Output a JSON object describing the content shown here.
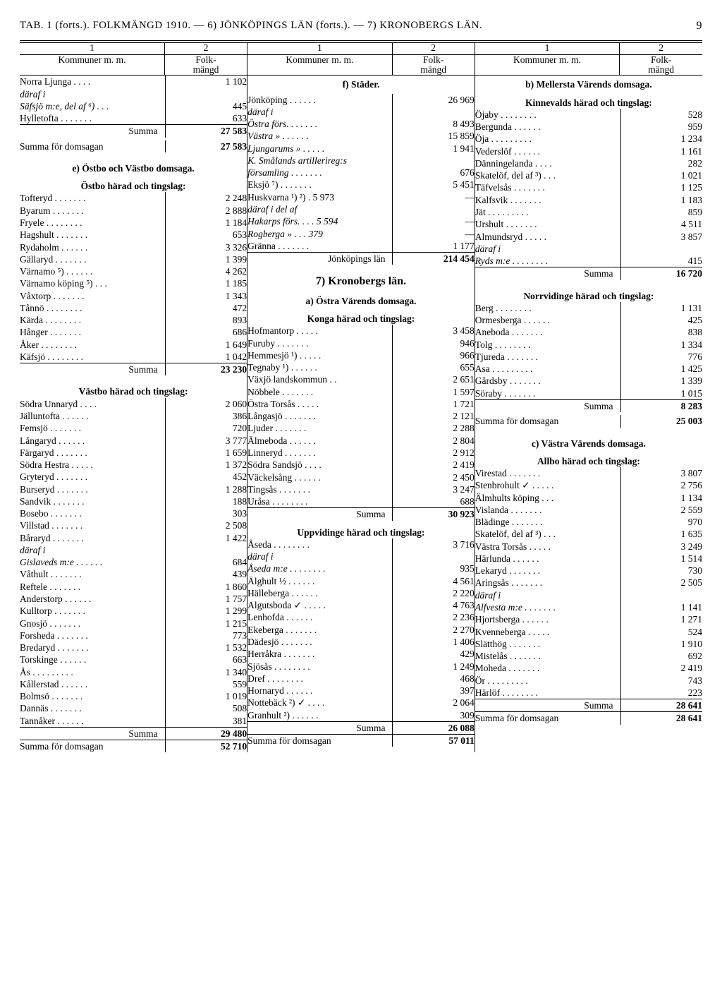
{
  "header": {
    "title": "TAB. 1 (forts.). FOLKMÄNGD 1910. — 6) JÖNKÖPINGS LÄN (forts.). — 7) KRONOBERGS LÄN.",
    "page_number": "9"
  },
  "column_numbers": [
    "1",
    "2",
    "1",
    "2",
    "1",
    "2"
  ],
  "column_headers": {
    "label": "Kommuner m. m.",
    "value": "Folk-\nmängd"
  },
  "col1": [
    {
      "t": "row",
      "lbl": "Norra Ljunga . . . .",
      "val": "1 102"
    },
    {
      "t": "row",
      "lbl": "däraf i",
      "cls": "italic",
      "val": ""
    },
    {
      "t": "row",
      "lbl": "Säfsjö m:e, del af ⁶) . . .",
      "cls": "italic",
      "val": "445"
    },
    {
      "t": "row",
      "lbl": "Hylletofta . . . . . . .",
      "val": "633"
    },
    {
      "t": "sum",
      "lbl": "Summa",
      "cls": "right",
      "val": "27 583",
      "bold": true
    },
    {
      "t": "thinspacer"
    },
    {
      "t": "row",
      "lbl": "Summa för domsagan",
      "val": "27 583",
      "bold": true
    },
    {
      "t": "spacer"
    },
    {
      "t": "head",
      "lbl": "e) Östbo och Västbo\ndomsaga."
    },
    {
      "t": "thinspacer"
    },
    {
      "t": "head",
      "lbl": "Östbo härad och\ntingslag:"
    },
    {
      "t": "row",
      "lbl": "Tofteryd . . . . . . .",
      "val": "2 248"
    },
    {
      "t": "row",
      "lbl": "Byarum . . . . . . .",
      "val": "2 888"
    },
    {
      "t": "row",
      "lbl": "Fryele . . . . . . . .",
      "val": "1 184"
    },
    {
      "t": "row",
      "lbl": "Hagshult . . . . . . .",
      "val": "653"
    },
    {
      "t": "row",
      "lbl": "Rydaholm . . . . . .",
      "val": "3 326"
    },
    {
      "t": "row",
      "lbl": "Gällaryd . . . . . . .",
      "val": "1 399"
    },
    {
      "t": "row",
      "lbl": "Värnamo ⁵) . . . . . .",
      "val": "4 262"
    },
    {
      "t": "row",
      "lbl": "Värnamo köping ⁵) . . .",
      "val": "1 185"
    },
    {
      "t": "row",
      "lbl": "Våxtorp . . . . . . .",
      "val": "1 343"
    },
    {
      "t": "row",
      "lbl": "Tånnö . . . . . . . .",
      "val": "472"
    },
    {
      "t": "row",
      "lbl": "Kärda . . . . . . . .",
      "val": "893"
    },
    {
      "t": "row",
      "lbl": "Hånger . . . . . . .",
      "val": "686"
    },
    {
      "t": "row",
      "lbl": "Åker . . . . . . . .",
      "val": "1 649"
    },
    {
      "t": "row",
      "lbl": "Käfsjö . . . . . . . .",
      "val": "1 042"
    },
    {
      "t": "sum",
      "lbl": "Summa",
      "cls": "right",
      "val": "23 230",
      "bold": true
    },
    {
      "t": "spacer"
    },
    {
      "t": "head",
      "lbl": "Västbo härad och\ntingslag:"
    },
    {
      "t": "row",
      "lbl": "Södra Unnaryd . . . .",
      "val": "2 060"
    },
    {
      "t": "row",
      "lbl": "Jälluntofta . . . . . .",
      "val": "386"
    },
    {
      "t": "row",
      "lbl": "Femsjö . . . . . . .",
      "val": "720"
    },
    {
      "t": "row",
      "lbl": "Långaryd . . . . . .",
      "val": "3 777"
    },
    {
      "t": "row",
      "lbl": "Färgaryd . . . . . . .",
      "val": "1 659"
    },
    {
      "t": "row",
      "lbl": "Södra Hestra . . . . .",
      "val": "1 372"
    },
    {
      "t": "row",
      "lbl": "Gryteryd . . . . . . .",
      "val": "452"
    },
    {
      "t": "row",
      "lbl": "Burseryd . . . . . . .",
      "val": "1 288"
    },
    {
      "t": "row",
      "lbl": "Sandvik . . . . . . .",
      "val": "188"
    },
    {
      "t": "row",
      "lbl": "Bosebo . . . . . . .",
      "val": "303"
    },
    {
      "t": "row",
      "lbl": "Villstad . . . . . . .",
      "val": "2 508"
    },
    {
      "t": "row",
      "lbl": "Båraryd . . . . . . .",
      "val": "1 422"
    },
    {
      "t": "row",
      "lbl": "däraf i",
      "cls": "italic",
      "val": ""
    },
    {
      "t": "row",
      "lbl": "Gislaveds m:e . . . . . .",
      "cls": "italic",
      "val": "684"
    },
    {
      "t": "row",
      "lbl": "Våthult . . . . . . .",
      "val": "439"
    },
    {
      "t": "row",
      "lbl": "Reftele . . . . . . .",
      "val": "1 860"
    },
    {
      "t": "row",
      "lbl": "Anderstorp . . . . . .",
      "val": "1 757"
    },
    {
      "t": "row",
      "lbl": "Kulltorp . . . . . . .",
      "val": "1 299"
    },
    {
      "t": "row",
      "lbl": "Gnosjö . . . . . . .",
      "val": "1 215"
    },
    {
      "t": "row",
      "lbl": "Forsheda . . . . . . .",
      "val": "773"
    },
    {
      "t": "row",
      "lbl": "Bredaryd . . . . . . .",
      "val": "1 532"
    },
    {
      "t": "row",
      "lbl": "Torskinge . . . . . .",
      "val": "663"
    },
    {
      "t": "row",
      "lbl": "Ås . . . . . . . . .",
      "val": "1 340"
    },
    {
      "t": "row",
      "lbl": "Kållerstad . . . . . .",
      "val": "559"
    },
    {
      "t": "row",
      "lbl": "Bolmsö . . . . . . .",
      "val": "1 019"
    },
    {
      "t": "row",
      "lbl": "Dannäs . . . . . . .",
      "val": "508"
    },
    {
      "t": "row",
      "lbl": "Tannåker . . . . . .",
      "val": "381"
    },
    {
      "t": "sum",
      "lbl": "Summa",
      "cls": "right",
      "val": "29 480",
      "bold": true
    },
    {
      "t": "sum",
      "lbl": "Summa för domsagan",
      "val": "52 710",
      "bold": true
    }
  ],
  "col2": [
    {
      "t": "head",
      "lbl": "f) Städer."
    },
    {
      "t": "thinspacer"
    },
    {
      "t": "row",
      "lbl": "Jönköping . . . . . .",
      "val": "26 969"
    },
    {
      "t": "row",
      "lbl": "däraf i",
      "cls": "italic",
      "val": ""
    },
    {
      "t": "row",
      "lbl": "Östra       förs. . . . . . .",
      "cls": "italic",
      "val": "8 493"
    },
    {
      "t": "row",
      "lbl": "Västra       »    . . . . . .",
      "cls": "italic",
      "val": "15 859"
    },
    {
      "t": "row",
      "lbl": "Ljungarums »   . . . . .",
      "cls": "italic",
      "val": "1 941"
    },
    {
      "t": "row",
      "lbl": "K. Smålands artillerireg:s",
      "cls": "italic",
      "val": ""
    },
    {
      "t": "row",
      "lbl": "församling . . . . . . .",
      "cls": "italic",
      "val": "676"
    },
    {
      "t": "row",
      "lbl": "Eksjö ⁷) . . . . . . .",
      "val": "5 451"
    },
    {
      "t": "row",
      "lbl": "Huskvarna ¹) ²) .  5 973",
      "val": "—"
    },
    {
      "t": "row",
      "lbl": "däraf i del af",
      "cls": "italic",
      "val": ""
    },
    {
      "t": "row",
      "lbl": "Hakarps förs. . . .  5 594",
      "cls": "italic",
      "val": "—"
    },
    {
      "t": "row",
      "lbl": "Rogberga   »  . . .    379",
      "cls": "italic",
      "val": "—"
    },
    {
      "t": "row",
      "lbl": "Gränna . . . . . . .",
      "val": "1 177"
    },
    {
      "t": "sum",
      "lbl": "Jönköpings län",
      "cls": "right",
      "val": "214 454",
      "bold": true
    },
    {
      "t": "spacer"
    },
    {
      "t": "head",
      "lbl": "7) Kronobergs län.",
      "big": true
    },
    {
      "t": "thinspacer"
    },
    {
      "t": "head",
      "lbl": "a) Östra Värends\ndomsaga."
    },
    {
      "t": "thinspacer"
    },
    {
      "t": "head",
      "lbl": "Konga härad och\ntingslag:"
    },
    {
      "t": "row",
      "lbl": "Hofmantorp . . . . .",
      "val": "3 458"
    },
    {
      "t": "row",
      "lbl": "Furuby . . . . . . .",
      "val": "946"
    },
    {
      "t": "row",
      "lbl": "Hemmesjö ¹) . . . . .",
      "val": "966"
    },
    {
      "t": "row",
      "lbl": "Tegnaby ¹) . . . . . .",
      "val": "655"
    },
    {
      "t": "row",
      "lbl": "Växjö landskommun . .",
      "val": "2 651"
    },
    {
      "t": "row",
      "lbl": "Nöbbele . . . . . . .",
      "val": "1 597"
    },
    {
      "t": "row",
      "lbl": "Östra Torsås . . . . .",
      "val": "1 721"
    },
    {
      "t": "row",
      "lbl": "Långasjö . . . . . . .",
      "val": "2 121"
    },
    {
      "t": "row",
      "lbl": "Ljuder . . . . . . .",
      "val": "2 288"
    },
    {
      "t": "row",
      "lbl": "Älmeboda . . . . . .",
      "val": "2 804"
    },
    {
      "t": "row",
      "lbl": "Linneryd . . . . . . .",
      "val": "2 912"
    },
    {
      "t": "row",
      "lbl": "Södra Sandsjö . . . .",
      "val": "2 419"
    },
    {
      "t": "row",
      "lbl": "Väckelsång . . . . . .",
      "val": "2 450"
    },
    {
      "t": "row",
      "lbl": "Tingsås . . . . . . .",
      "val": "3 247"
    },
    {
      "t": "row",
      "lbl": "Uråsa . . . . . . . .",
      "val": "688"
    },
    {
      "t": "sum",
      "lbl": "Summa",
      "cls": "right",
      "val": "30 923",
      "bold": true
    },
    {
      "t": "thinspacer"
    },
    {
      "t": "head",
      "lbl": "Uppvidinge härad och\ntingslag:"
    },
    {
      "t": "row",
      "lbl": "Åseda . . . . . . . .",
      "val": "3 716"
    },
    {
      "t": "row",
      "lbl": "däraf i",
      "cls": "italic",
      "val": ""
    },
    {
      "t": "row",
      "lbl": "Åseda m:e . . . . . . . .",
      "cls": "italic",
      "val": "935"
    },
    {
      "t": "row",
      "lbl": "Älghult ½ . . . . . .",
      "val": "4 561"
    },
    {
      "t": "row",
      "lbl": "Hälleberga . . . . . .",
      "val": "2 220"
    },
    {
      "t": "row",
      "lbl": "Algutsboda ✓ . . . . .",
      "val": "4 763"
    },
    {
      "t": "row",
      "lbl": "Lenhofda . . . . . .",
      "val": "2 236"
    },
    {
      "t": "row",
      "lbl": "Ekeberga . . . . . . .",
      "val": "2 270"
    },
    {
      "t": "row",
      "lbl": "Dädesjö . . . . . . .",
      "val": "1 406"
    },
    {
      "t": "row",
      "lbl": "Herråkra . . . . . . .",
      "val": "429"
    },
    {
      "t": "row",
      "lbl": "Sjösås . . . . . . . .",
      "val": "1 249"
    },
    {
      "t": "row",
      "lbl": "Dref . . . . . . . .",
      "val": "468"
    },
    {
      "t": "row",
      "lbl": "Hornaryd . . . . . .",
      "val": "397"
    },
    {
      "t": "row",
      "lbl": "Nottebäck ²) ✓ . . . .",
      "val": "2 064"
    },
    {
      "t": "row",
      "lbl": "Granhult ²) . . . . . .",
      "val": "309"
    },
    {
      "t": "sum",
      "lbl": "Summa",
      "cls": "right",
      "val": "26 088",
      "bold": true
    },
    {
      "t": "sum",
      "lbl": "Summa för domsagan",
      "val": "57 011",
      "bold": true
    }
  ],
  "col3": [
    {
      "t": "head",
      "lbl": "b) Mellersta Värends\ndomsaga."
    },
    {
      "t": "thinspacer"
    },
    {
      "t": "head",
      "lbl": "Kinnevalds härad och\ntingslag:"
    },
    {
      "t": "row",
      "lbl": "Öjaby . . . . . . . .",
      "val": "528"
    },
    {
      "t": "row",
      "lbl": "Bergunda . . . . . .",
      "val": "959"
    },
    {
      "t": "row",
      "lbl": "Öja . . . . . . . . .",
      "val": "1 234"
    },
    {
      "t": "row",
      "lbl": "Vederslöf . . . . . .",
      "val": "1 161"
    },
    {
      "t": "row",
      "lbl": "Dänningelanda . . . .",
      "val": "282"
    },
    {
      "t": "row",
      "lbl": "Skatelöf, del af ³) . . .",
      "val": "1 021"
    },
    {
      "t": "row",
      "lbl": "Täfvelsås . . . . . . .",
      "val": "1 125"
    },
    {
      "t": "row",
      "lbl": "Kalfsvik . . . . . . .",
      "val": "1 183"
    },
    {
      "t": "row",
      "lbl": "Jät . . . . . . . . .",
      "val": "859"
    },
    {
      "t": "row",
      "lbl": "Urshult . . . . . . .",
      "val": "4 511"
    },
    {
      "t": "row",
      "lbl": "Almundsryd . . . . .",
      "val": "3 857"
    },
    {
      "t": "row",
      "lbl": "däraf i",
      "cls": "italic",
      "val": ""
    },
    {
      "t": "row",
      "lbl": "Ryds m:e . . . . . . . .",
      "cls": "italic",
      "val": "415"
    },
    {
      "t": "sum",
      "lbl": "Summa",
      "cls": "right",
      "val": "16 720",
      "bold": true
    },
    {
      "t": "spacer"
    },
    {
      "t": "head",
      "lbl": "Norrvidinge härad och\ntingslag:"
    },
    {
      "t": "row",
      "lbl": "Berg . . . . . . . .",
      "val": "1 131"
    },
    {
      "t": "row",
      "lbl": "Ormesberga . . . . . .",
      "val": "425"
    },
    {
      "t": "row",
      "lbl": "Aneboda . . . . . . .",
      "val": "838"
    },
    {
      "t": "row",
      "lbl": "Tolg . . . . . . . .",
      "val": "1 334"
    },
    {
      "t": "row",
      "lbl": "Tjureda . . . . . . .",
      "val": "776"
    },
    {
      "t": "row",
      "lbl": "Asa . . . . . . . . .",
      "val": "1 425"
    },
    {
      "t": "row",
      "lbl": "Gårdsby . . . . . . .",
      "val": "1 339"
    },
    {
      "t": "row",
      "lbl": "Söraby . . . . . . .",
      "val": "1 015"
    },
    {
      "t": "sum",
      "lbl": "Summa",
      "cls": "right",
      "val": "8 283",
      "bold": true
    },
    {
      "t": "thinspacer"
    },
    {
      "t": "row",
      "lbl": "Summa för domsagan",
      "val": "25 003",
      "bold": true
    },
    {
      "t": "spacer"
    },
    {
      "t": "head",
      "lbl": "c) Västra Värends\ndomsaga."
    },
    {
      "t": "thinspacer"
    },
    {
      "t": "head",
      "lbl": "Allbo härad och\ntingslag:"
    },
    {
      "t": "row",
      "lbl": "Virestad . . . . . . .",
      "val": "3 807"
    },
    {
      "t": "row",
      "lbl": "Stenbrohult ✓ . . . . .",
      "val": "2 756"
    },
    {
      "t": "row",
      "lbl": "Älmhults köping . . .",
      "val": "1 134"
    },
    {
      "t": "row",
      "lbl": "Vislanda . . . . . . .",
      "val": "2 559"
    },
    {
      "t": "row",
      "lbl": "Blädinge . . . . . . .",
      "val": "970"
    },
    {
      "t": "row",
      "lbl": "Skatelöf, del af ³) . . .",
      "val": "1 635"
    },
    {
      "t": "row",
      "lbl": "Västra Torsås . . . . .",
      "val": "3 249"
    },
    {
      "t": "row",
      "lbl": "Härlunda . . . . . .",
      "val": "1 514"
    },
    {
      "t": "row",
      "lbl": "Lekaryd . . . . . . .",
      "val": "730"
    },
    {
      "t": "row",
      "lbl": "Aringsås . . . . . . .",
      "val": "2 505"
    },
    {
      "t": "row",
      "lbl": "däraf i",
      "cls": "italic",
      "val": ""
    },
    {
      "t": "row",
      "lbl": "Alfvesta m:e . . . . . . .",
      "cls": "italic",
      "val": "1 141"
    },
    {
      "t": "row",
      "lbl": "Hjortsberga . . . . . .",
      "val": "1 271"
    },
    {
      "t": "row",
      "lbl": "Kvenneberga . . . . .",
      "val": "524"
    },
    {
      "t": "row",
      "lbl": "Slätthög . . . . . . .",
      "val": "1 910"
    },
    {
      "t": "row",
      "lbl": "Mistelås . . . . . . .",
      "val": "692"
    },
    {
      "t": "row",
      "lbl": "Moheda . . . . . . .",
      "val": "2 419"
    },
    {
      "t": "row",
      "lbl": "Ör . . . . . . . . .",
      "val": "743"
    },
    {
      "t": "row",
      "lbl": "Härlöf . . . . . . . .",
      "val": "223"
    },
    {
      "t": "sum",
      "lbl": "Summa",
      "cls": "right",
      "val": "28 641",
      "bold": true
    },
    {
      "t": "sum",
      "lbl": "Summa för domsagan",
      "val": "28 641",
      "bold": true
    }
  ]
}
